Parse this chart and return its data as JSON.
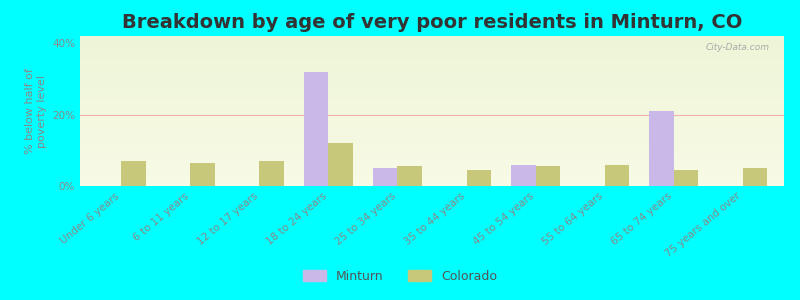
{
  "title": "Breakdown by age of very poor residents in Minturn, CO",
  "ylabel": "% below half of\npoverty level",
  "categories": [
    "Under 6 years",
    "6 to 11 years",
    "12 to 17 years",
    "18 to 24 years",
    "25 to 34 years",
    "35 to 44 years",
    "45 to 54 years",
    "55 to 64 years",
    "65 to 74 years",
    "75 years and over"
  ],
  "minturn_values": [
    0,
    0,
    0,
    32,
    5,
    0,
    6,
    0,
    21,
    0
  ],
  "colorado_values": [
    7,
    6.5,
    7,
    12,
    5.5,
    4.5,
    5.5,
    6,
    4.5,
    5
  ],
  "minturn_color": "#c9b8e8",
  "colorado_color": "#c8c87a",
  "background_color": "#00ffff",
  "ylim": [
    0,
    42
  ],
  "yticks": [
    0,
    20,
    40
  ],
  "ytick_labels": [
    "0%",
    "20%",
    "40%"
  ],
  "bar_width": 0.35,
  "title_fontsize": 14,
  "axis_fontsize": 8,
  "tick_fontsize": 7.5,
  "legend_labels": [
    "Minturn",
    "Colorado"
  ],
  "watermark": "City-Data.com"
}
